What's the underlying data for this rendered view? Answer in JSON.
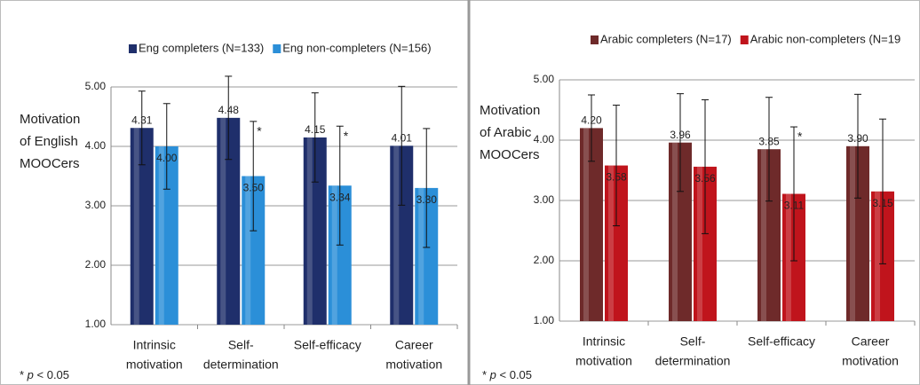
{
  "chart_data": [
    {
      "type": "bar",
      "ylabel": [
        "Motivation",
        "of English",
        "MOOCers"
      ],
      "categories": [
        [
          "Intrinsic",
          "motivation"
        ],
        [
          "Self-",
          "determination"
        ],
        [
          "Self-efficacy"
        ],
        [
          "Career",
          "motivation"
        ]
      ],
      "series": [
        {
          "name": "Eng completers (N=133)",
          "color": "#1f2f6b",
          "values": [
            4.31,
            4.48,
            4.15,
            4.01
          ],
          "value_labels": [
            "4.31",
            "4.48",
            "4.15",
            "4.01"
          ],
          "errors": [
            0.62,
            0.7,
            0.75,
            1.0
          ]
        },
        {
          "name": "Eng non-completers  (N=156)",
          "color": "#2b8fd8",
          "values": [
            4.0,
            3.5,
            3.34,
            3.3
          ],
          "value_labels": [
            "4.00",
            "3.50",
            "3.34",
            "3.30"
          ],
          "errors": [
            0.72,
            0.92,
            1.0,
            1.0
          ],
          "significance": [
            null,
            "*",
            "*",
            null
          ]
        }
      ],
      "ylim": [
        1,
        5
      ],
      "yticks": [
        {
          "value": 1,
          "label": "1.00"
        },
        {
          "value": 2,
          "label": "2.00"
        },
        {
          "value": 3,
          "label": "3.00"
        },
        {
          "value": 4,
          "label": "4.00"
        },
        {
          "value": 5,
          "label": "5.00"
        }
      ],
      "grid": true,
      "note": [
        "*",
        "p",
        "< 0.05"
      ]
    },
    {
      "type": "bar",
      "ylabel": [
        "Motivation",
        "of Arabic",
        "MOOCers"
      ],
      "categories": [
        [
          "Intrinsic",
          "motivation"
        ],
        [
          "Self-",
          "determination"
        ],
        [
          "Self-efficacy"
        ],
        [
          "Career",
          "motivation"
        ]
      ],
      "series": [
        {
          "name": "Arabic completers (N=17)",
          "color": "#6e2a2a",
          "values": [
            4.2,
            3.96,
            3.85,
            3.9
          ],
          "value_labels": [
            "4.20",
            "3.96",
            "3.85",
            "3.90"
          ],
          "errors": [
            0.55,
            0.81,
            0.86,
            0.86
          ]
        },
        {
          "name": "Arabic non-completers (N=19",
          "color": "#c0141c",
          "values": [
            3.58,
            3.56,
            3.11,
            3.15
          ],
          "value_labels": [
            "3.58",
            "3.56",
            "3.11",
            "3.15"
          ],
          "errors": [
            1.0,
            1.11,
            1.11,
            1.2
          ],
          "significance": [
            null,
            null,
            "*",
            null
          ]
        }
      ],
      "ylim": [
        1,
        5
      ],
      "yticks": [
        {
          "value": 1,
          "label": "1.00"
        },
        {
          "value": 2,
          "label": "2.00"
        },
        {
          "value": 3,
          "label": "3.00"
        },
        {
          "value": 4,
          "label": "4.00"
        },
        {
          "value": 5,
          "label": "5.00"
        }
      ],
      "grid": true,
      "note": [
        "*",
        "p",
        "< 0.05"
      ]
    }
  ]
}
